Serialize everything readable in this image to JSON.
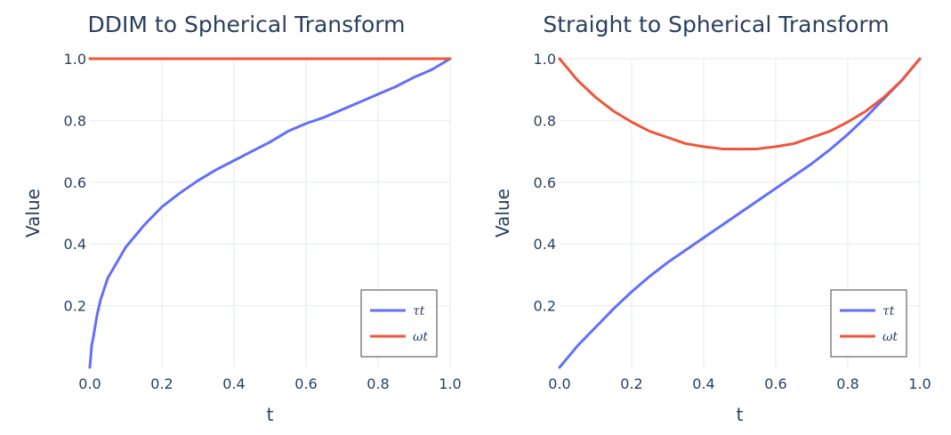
{
  "chart_data": [
    {
      "type": "line",
      "title": "DDIM to Spherical Transform",
      "xlabel": "t",
      "ylabel": "Value",
      "xlim": [
        0.0,
        1.0
      ],
      "ylim": [
        0.0,
        1.0
      ],
      "xticks": [
        "0.0",
        "0.2",
        "0.4",
        "0.6",
        "0.8",
        "1.0"
      ],
      "yticks": [
        "0.2",
        "0.4",
        "0.6",
        "0.8",
        "1.0"
      ],
      "grid": true,
      "legend_position": "bottom-right",
      "series": [
        {
          "name": "τt",
          "color": "#636efa",
          "x": [
            0.0,
            0.005,
            0.01,
            0.02,
            0.03,
            0.05,
            0.07,
            0.1,
            0.15,
            0.2,
            0.25,
            0.3,
            0.35,
            0.4,
            0.45,
            0.5,
            0.55,
            0.6,
            0.65,
            0.7,
            0.75,
            0.8,
            0.85,
            0.9,
            0.95,
            1.0
          ],
          "values": [
            0.0,
            0.07,
            0.1,
            0.17,
            0.22,
            0.29,
            0.33,
            0.39,
            0.46,
            0.52,
            0.565,
            0.605,
            0.64,
            0.67,
            0.7,
            0.73,
            0.765,
            0.79,
            0.81,
            0.835,
            0.86,
            0.885,
            0.91,
            0.94,
            0.965,
            1.0
          ]
        },
        {
          "name": "ωt",
          "color": "#ef553b",
          "x": [
            0.0,
            1.0
          ],
          "values": [
            1.0,
            1.0
          ]
        }
      ]
    },
    {
      "type": "line",
      "title": "Straight to Spherical Transform",
      "xlabel": "t",
      "ylabel": "Value",
      "xlim": [
        0.0,
        1.0
      ],
      "ylim": [
        0.0,
        1.0
      ],
      "xticks": [
        "0.0",
        "0.2",
        "0.4",
        "0.6",
        "0.8",
        "1.0"
      ],
      "yticks": [
        "0.2",
        "0.4",
        "0.6",
        "0.8",
        "1.0"
      ],
      "grid": true,
      "legend_position": "bottom-right",
      "series": [
        {
          "name": "τt",
          "color": "#636efa",
          "x": [
            0.0,
            0.05,
            0.1,
            0.15,
            0.2,
            0.25,
            0.3,
            0.35,
            0.4,
            0.45,
            0.5,
            0.55,
            0.6,
            0.65,
            0.7,
            0.75,
            0.8,
            0.85,
            0.9,
            0.95,
            1.0
          ],
          "values": [
            0.0,
            0.07,
            0.13,
            0.19,
            0.245,
            0.295,
            0.34,
            0.38,
            0.42,
            0.46,
            0.5,
            0.54,
            0.58,
            0.62,
            0.66,
            0.705,
            0.755,
            0.81,
            0.87,
            0.93,
            1.0
          ]
        },
        {
          "name": "ωt",
          "color": "#ef553b",
          "x": [
            0.0,
            0.05,
            0.1,
            0.15,
            0.2,
            0.25,
            0.3,
            0.35,
            0.4,
            0.45,
            0.5,
            0.55,
            0.6,
            0.65,
            0.7,
            0.75,
            0.8,
            0.85,
            0.9,
            0.95,
            1.0
          ],
          "values": [
            1.0,
            0.93,
            0.875,
            0.83,
            0.795,
            0.765,
            0.745,
            0.725,
            0.715,
            0.708,
            0.707,
            0.708,
            0.715,
            0.725,
            0.745,
            0.765,
            0.795,
            0.83,
            0.875,
            0.93,
            1.0
          ]
        }
      ]
    }
  ]
}
